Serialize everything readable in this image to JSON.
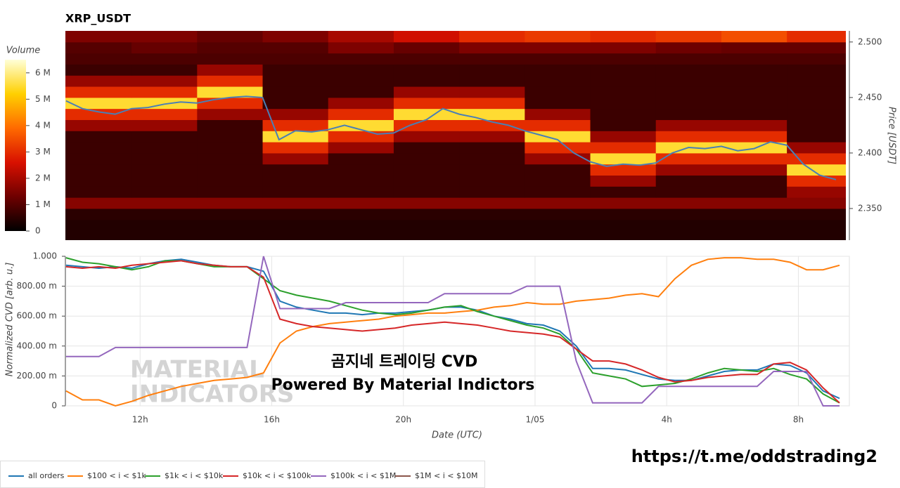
{
  "link": "https://t.me/oddstrading2",
  "chart_data": [
    {
      "type": "heatmap",
      "title": "XRP_USDT",
      "y_label": "Price [USDT]",
      "colorbar_title": "Volume",
      "xlim": [
        9.73,
        33.55
      ],
      "ylim": [
        2.3215,
        2.51
      ],
      "yticks": [
        {
          "value": 2.35,
          "label": "2.350"
        },
        {
          "value": 2.4,
          "label": "2.400"
        },
        {
          "value": 2.45,
          "label": "2.450"
        },
        {
          "value": 2.5,
          "label": "2.500"
        }
      ],
      "clim": [
        0,
        6500000.0
      ],
      "cticks": [
        0,
        {
          "value": 1000000.0,
          "label": "1 M"
        },
        {
          "value": 2000000.0,
          "label": "2 M"
        },
        {
          "value": 3000000.0,
          "label": "3 M"
        },
        {
          "value": 4000000.0,
          "label": "4 M"
        },
        {
          "value": 5000000.0,
          "label": "5 M"
        },
        {
          "value": 6000000.0,
          "label": "6 M"
        }
      ],
      "colorscale": [
        "#000000",
        "#6e0000",
        "#d81000",
        "#ff6a00",
        "#ffd000",
        "#ffffd8"
      ],
      "xbins": [
        9.73,
        11.75,
        13.75,
        15.75,
        17.75,
        19.75,
        21.75,
        23.75,
        25.75,
        27.75,
        29.75,
        31.75,
        33.55
      ],
      "ybins": [
        2.32,
        2.33,
        2.34,
        2.35,
        2.36,
        2.37,
        2.38,
        2.39,
        2.4,
        2.41,
        2.42,
        2.43,
        2.44,
        2.45,
        2.46,
        2.47,
        2.48,
        2.49,
        2.5,
        2.51
      ],
      "z": [
        [
          400000.0,
          400000.0,
          400000.0,
          400000.0,
          400000.0,
          400000.0,
          400000.0,
          400000.0,
          400000.0,
          400000.0,
          400000.0,
          400000.0
        ],
        [
          400000.0,
          400000.0,
          400000.0,
          400000.0,
          400000.0,
          400000.0,
          400000.0,
          400000.0,
          400000.0,
          400000.0,
          400000.0,
          400000.0
        ],
        [
          500000.0,
          500000.0,
          500000.0,
          500000.0,
          500000.0,
          500000.0,
          500000.0,
          500000.0,
          500000.0,
          500000.0,
          500000.0,
          500000.0
        ],
        [
          1600000.0,
          1600000.0,
          1600000.0,
          1600000.0,
          1600000.0,
          1600000.0,
          1600000.0,
          1600000.0,
          1600000.0,
          1600000.0,
          1600000.0,
          1600000.0
        ],
        [
          700000.0,
          700000.0,
          700000.0,
          700000.0,
          700000.0,
          700000.0,
          700000.0,
          700000.0,
          700000.0,
          700000.0,
          700000.0,
          1800000.0
        ],
        [
          700000.0,
          700000.0,
          700000.0,
          700000.0,
          700000.0,
          700000.0,
          700000.0,
          700000.0,
          1800000.0,
          700000.0,
          700000.0,
          3000000.0
        ],
        [
          700000.0,
          700000.0,
          700000.0,
          700000.0,
          700000.0,
          700000.0,
          700000.0,
          700000.0,
          3000000.0,
          1800000.0,
          1800000.0,
          5500000.0
        ],
        [
          700000.0,
          700000.0,
          700000.0,
          1800000.0,
          700000.0,
          700000.0,
          700000.0,
          1800000.0,
          5500000.0,
          3000000.0,
          3000000.0,
          3000000.0
        ],
        [
          700000.0,
          700000.0,
          700000.0,
          3000000.0,
          1800000.0,
          700000.0,
          700000.0,
          3000000.0,
          3000000.0,
          5500000.0,
          5500000.0,
          1800000.0
        ],
        [
          700000.0,
          700000.0,
          700000.0,
          5500000.0,
          3000000.0,
          1800000.0,
          1800000.0,
          5500000.0,
          1800000.0,
          3000000.0,
          3000000.0,
          700000.0
        ],
        [
          1800000.0,
          1800000.0,
          700000.0,
          3000000.0,
          5500000.0,
          3000000.0,
          3000000.0,
          3000000.0,
          700000.0,
          1800000.0,
          1800000.0,
          700000.0
        ],
        [
          3000000.0,
          3000000.0,
          1800000.0,
          1800000.0,
          3000000.0,
          5500000.0,
          5500000.0,
          1800000.0,
          700000.0,
          700000.0,
          700000.0,
          700000.0
        ],
        [
          5500000.0,
          5500000.0,
          3000000.0,
          700000.0,
          1800000.0,
          3000000.0,
          3000000.0,
          700000.0,
          700000.0,
          700000.0,
          700000.0,
          700000.0
        ],
        [
          3000000.0,
          3000000.0,
          5500000.0,
          700000.0,
          700000.0,
          1800000.0,
          1800000.0,
          700000.0,
          700000.0,
          700000.0,
          700000.0,
          700000.0
        ],
        [
          1800000.0,
          1800000.0,
          3000000.0,
          700000.0,
          700000.0,
          700000.0,
          700000.0,
          700000.0,
          700000.0,
          700000.0,
          700000.0,
          700000.0
        ],
        [
          700000.0,
          700000.0,
          1800000.0,
          700000.0,
          700000.0,
          700000.0,
          700000.0,
          700000.0,
          700000.0,
          700000.0,
          700000.0,
          700000.0
        ],
        [
          900000.0,
          900000.0,
          900000.0,
          900000.0,
          900000.0,
          900000.0,
          900000.0,
          900000.0,
          900000.0,
          900000.0,
          900000.0,
          900000.0
        ],
        [
          1000000.0,
          1200000.0,
          1000000.0,
          1000000.0,
          1500000.0,
          1200000.0,
          1500000.0,
          1500000.0,
          1500000.0,
          1300000.0,
          1200000.0,
          1200000.0
        ],
        [
          1500000.0,
          1500000.0,
          1200000.0,
          1500000.0,
          2000000.0,
          2500000.0,
          3000000.0,
          3200000.0,
          3000000.0,
          3200000.0,
          3500000.0,
          3000000.0
        ]
      ],
      "x": [
        9.75,
        10.25,
        10.75,
        11.25,
        11.75,
        12.25,
        12.75,
        13.25,
        13.75,
        14.25,
        14.75,
        15.25,
        15.75,
        16.25,
        16.75,
        17.25,
        17.75,
        18.25,
        18.75,
        19.25,
        19.75,
        20.25,
        20.75,
        21.25,
        21.75,
        22.25,
        22.75,
        23.25,
        23.75,
        24.25,
        24.75,
        25.25,
        25.75,
        26.25,
        26.75,
        27.25,
        27.75,
        28.25,
        28.75,
        29.25,
        29.75,
        30.25,
        30.75,
        31.25,
        31.75,
        32.25,
        32.75,
        33.25
      ],
      "series": [
        {
          "color": "#4a7fb5",
          "values": [
            2.447,
            2.44,
            2.437,
            2.435,
            2.44,
            2.441,
            2.444,
            2.446,
            2.445,
            2.448,
            2.45,
            2.451,
            2.45,
            2.412,
            2.42,
            2.419,
            2.421,
            2.425,
            2.421,
            2.417,
            2.418,
            2.425,
            2.43,
            2.44,
            2.435,
            2.432,
            2.428,
            2.425,
            2.42,
            2.416,
            2.412,
            2.4,
            2.392,
            2.388,
            2.39,
            2.389,
            2.391,
            2.4,
            2.405,
            2.404,
            2.406,
            2.402,
            2.404,
            2.41,
            2.407,
            2.39,
            2.38,
            2.376
          ]
        }
      ]
    },
    {
      "type": "line",
      "x_label": "Date (UTC)",
      "y_label": "Normalized CVD [arb. u.]",
      "grid": true,
      "legend": "bottom",
      "annotations": [
        "곰지네 트레이딩 CVD",
        "Powered By Material Indictors"
      ],
      "watermark": [
        "MATERIAL",
        "INDICATORS"
      ],
      "xlim": [
        9.73,
        33.55
      ],
      "ylim": [
        0,
        1
      ],
      "xticks": [
        {
          "value": 12,
          "label": "12h"
        },
        {
          "value": 16,
          "label": "16h"
        },
        {
          "value": 20,
          "label": "20h"
        },
        {
          "value": 24,
          "label": "1/05"
        },
        {
          "value": 28,
          "label": "4h"
        },
        {
          "value": 32,
          "label": "8h"
        }
      ],
      "yticks": [
        0,
        {
          "value": 0.2,
          "label": "200.00 m"
        },
        {
          "value": 0.4,
          "label": "400.00 m"
        },
        {
          "value": 0.6,
          "label": "600.00 m"
        },
        {
          "value": 0.8,
          "label": "800.00 m"
        },
        {
          "value": 1,
          "label": "1.000"
        }
      ],
      "x": [
        9.75,
        10.25,
        10.75,
        11.25,
        11.75,
        12.25,
        12.75,
        13.25,
        13.75,
        14.25,
        14.75,
        15.25,
        15.75,
        16.25,
        16.75,
        17.25,
        17.75,
        18.25,
        18.75,
        19.25,
        19.75,
        20.25,
        20.75,
        21.25,
        21.75,
        22.25,
        22.75,
        23.25,
        23.75,
        24.25,
        24.75,
        25.25,
        25.75,
        26.25,
        26.75,
        27.25,
        27.75,
        28.25,
        28.75,
        29.25,
        29.75,
        30.25,
        30.75,
        31.25,
        31.75,
        32.25,
        32.75,
        33.25
      ],
      "series": [
        {
          "name": "all orders",
          "color": "#1f77b4",
          "values": [
            0.94,
            0.93,
            0.92,
            0.93,
            0.92,
            0.95,
            0.97,
            0.98,
            0.96,
            0.94,
            0.93,
            0.93,
            0.9,
            0.7,
            0.66,
            0.64,
            0.62,
            0.62,
            0.61,
            0.62,
            0.62,
            0.63,
            0.64,
            0.66,
            0.66,
            0.64,
            0.6,
            0.58,
            0.55,
            0.54,
            0.5,
            0.4,
            0.25,
            0.25,
            0.24,
            0.21,
            0.18,
            0.17,
            0.17,
            0.2,
            0.23,
            0.24,
            0.24,
            0.28,
            0.27,
            0.22,
            0.1,
            0.05
          ]
        },
        {
          "name": "$100 < i < $1k",
          "color": "#ff7f0e",
          "values": [
            0.1,
            0.04,
            0.04,
            0,
            0.03,
            0.07,
            0.1,
            0.13,
            0.15,
            0.17,
            0.18,
            0.19,
            0.22,
            0.42,
            0.5,
            0.53,
            0.55,
            0.56,
            0.57,
            0.58,
            0.6,
            0.61,
            0.62,
            0.62,
            0.63,
            0.64,
            0.66,
            0.67,
            0.69,
            0.68,
            0.68,
            0.7,
            0.71,
            0.72,
            0.74,
            0.75,
            0.73,
            0.85,
            0.94,
            0.98,
            0.99,
            0.99,
            0.98,
            0.98,
            0.96,
            0.91,
            0.91,
            0.94
          ]
        },
        {
          "name": "$1k < i < $10k",
          "color": "#2ca02c",
          "values": [
            0.99,
            0.96,
            0.95,
            0.93,
            0.91,
            0.93,
            0.97,
            0.97,
            0.95,
            0.93,
            0.93,
            0.93,
            0.85,
            0.77,
            0.74,
            0.72,
            0.7,
            0.67,
            0.64,
            0.62,
            0.61,
            0.62,
            0.64,
            0.66,
            0.67,
            0.63,
            0.6,
            0.57,
            0.54,
            0.52,
            0.48,
            0.38,
            0.22,
            0.2,
            0.18,
            0.13,
            0.14,
            0.15,
            0.18,
            0.22,
            0.25,
            0.24,
            0.23,
            0.25,
            0.21,
            0.18,
            0.08,
            0.02
          ]
        },
        {
          "name": "$10k < i < $100k",
          "color": "#d62728",
          "values": [
            0.93,
            0.92,
            0.93,
            0.92,
            0.94,
            0.95,
            0.96,
            0.97,
            0.95,
            0.94,
            0.93,
            0.93,
            0.86,
            0.58,
            0.55,
            0.53,
            0.52,
            0.51,
            0.5,
            0.51,
            0.52,
            0.54,
            0.55,
            0.56,
            0.55,
            0.54,
            0.52,
            0.5,
            0.49,
            0.48,
            0.46,
            0.38,
            0.3,
            0.3,
            0.28,
            0.24,
            0.19,
            0.16,
            0.17,
            0.19,
            0.2,
            0.21,
            0.21,
            0.28,
            0.29,
            0.24,
            0.12,
            0.02
          ]
        },
        {
          "name": "$100k < i < $1M",
          "color": "#9467bd",
          "values": [
            0.33,
            0.33,
            0.33,
            0.39,
            0.39,
            0.39,
            0.39,
            0.39,
            0.39,
            0.39,
            0.39,
            0.39,
            1,
            0.65,
            0.65,
            0.65,
            0.65,
            0.69,
            0.69,
            0.69,
            0.69,
            0.69,
            0.69,
            0.75,
            0.75,
            0.75,
            0.75,
            0.75,
            0.8,
            0.8,
            0.8,
            0.3,
            0.02,
            0.02,
            0.02,
            0.02,
            0.13,
            0.13,
            0.13,
            0.13,
            0.13,
            0.13,
            0.13,
            0.23,
            0.23,
            0.23,
            0,
            0
          ]
        },
        {
          "name": "$1M < i < $10M",
          "color": "#8c564b",
          "values": [
            null,
            null,
            null,
            null,
            null,
            null,
            null,
            null,
            null,
            null,
            null,
            null,
            null,
            null,
            null,
            null,
            null,
            null,
            null,
            null,
            null,
            null,
            null,
            null,
            null,
            null,
            null,
            null,
            null,
            null,
            null,
            null,
            null,
            null,
            null,
            null,
            null,
            null,
            null,
            null,
            null,
            null,
            null,
            null,
            null,
            null,
            null,
            null
          ]
        }
      ]
    }
  ]
}
